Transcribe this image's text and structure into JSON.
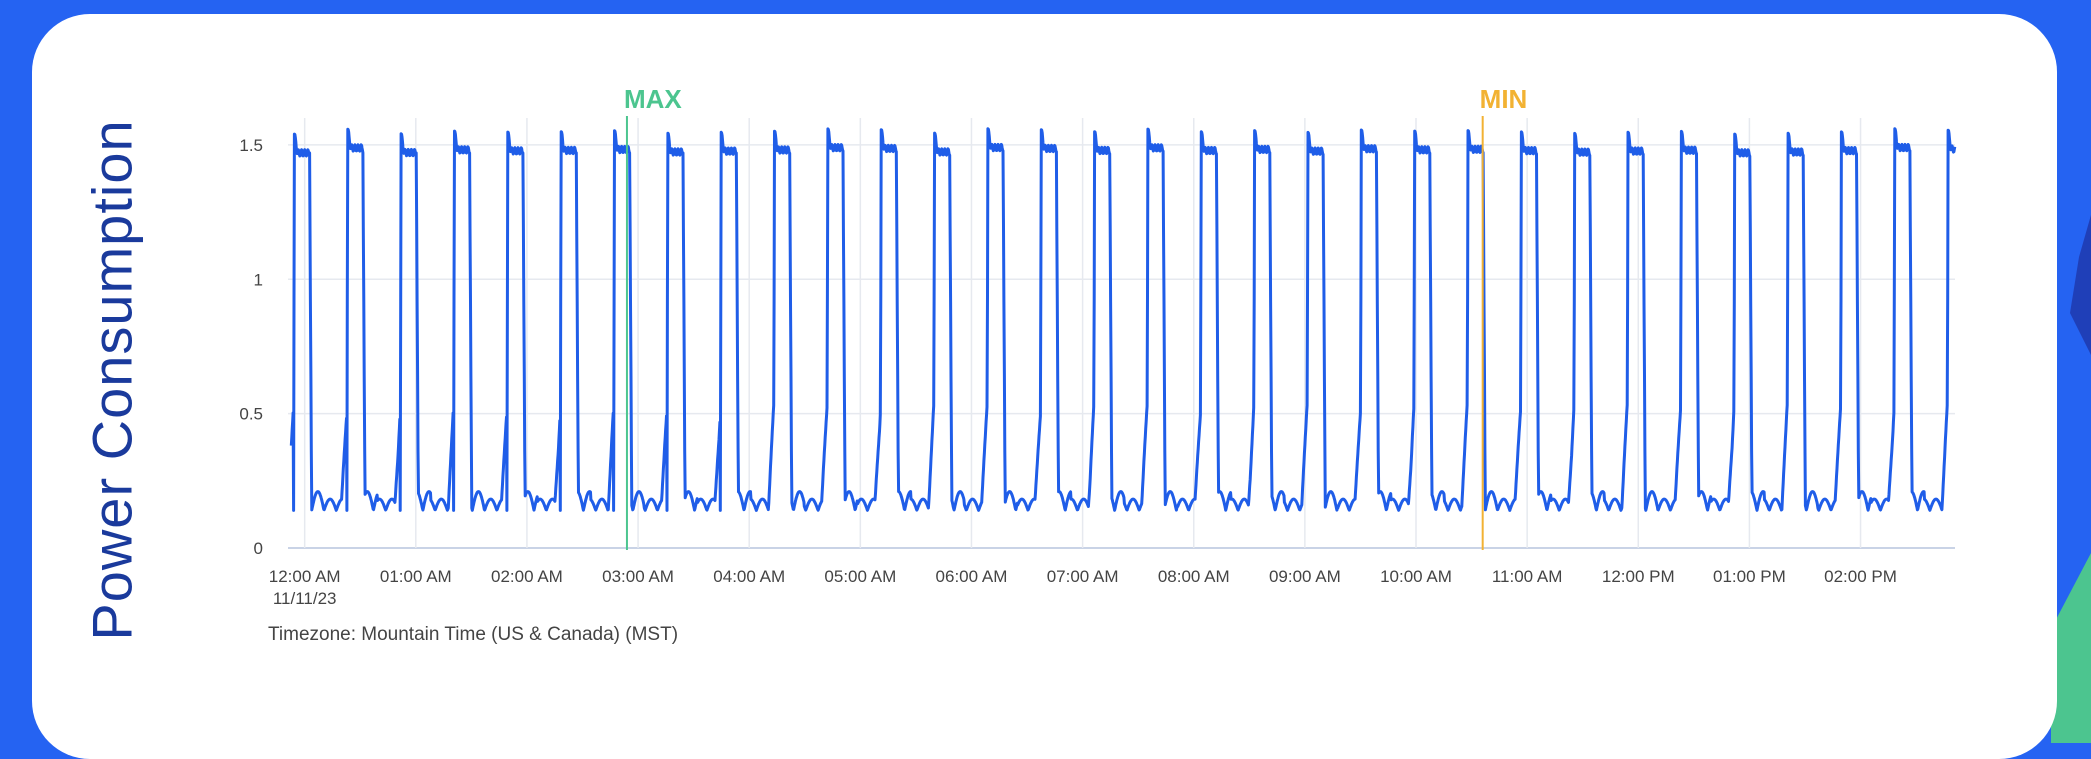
{
  "chart_data": {
    "type": "line",
    "ylabel": "Power Consumption",
    "ylim": [
      0,
      1.6
    ],
    "y_ticks": [
      "1.5",
      "1",
      "0.5",
      "0"
    ],
    "y_tick_values": [
      1.5,
      1,
      0.5,
      0
    ],
    "x_ticks": [
      "12:00 AM",
      "01:00 AM",
      "02:00 AM",
      "03:00 AM",
      "04:00 AM",
      "05:00 AM",
      "06:00 AM",
      "07:00 AM",
      "08:00 AM",
      "09:00 AM",
      "10:00 AM",
      "11:00 AM",
      "12:00 PM",
      "01:00 PM",
      "02:00 PM"
    ],
    "x_tick_hours": [
      0,
      1,
      2,
      3,
      4,
      5,
      6,
      7,
      8,
      9,
      10,
      11,
      12,
      13,
      14
    ],
    "x_range_hours": [
      -0.15,
      14.85
    ],
    "date_label": "11/11/23",
    "timezone_note": "Timezone: Mountain Time (US & Canada) (MST)",
    "grid": true,
    "series_color": "#1f5de8",
    "cycle": {
      "period_hours": 0.48,
      "first_start_hours": -0.1,
      "high_level": 1.47,
      "high_peak": 1.54,
      "low_level": 0.14,
      "on_fraction": 0.3
    },
    "markers": [
      {
        "label": "MAX",
        "hour": 2.9,
        "color": "#4cc58f"
      },
      {
        "label": "MIN",
        "hour": 10.6,
        "color": "#f2b233"
      }
    ]
  }
}
